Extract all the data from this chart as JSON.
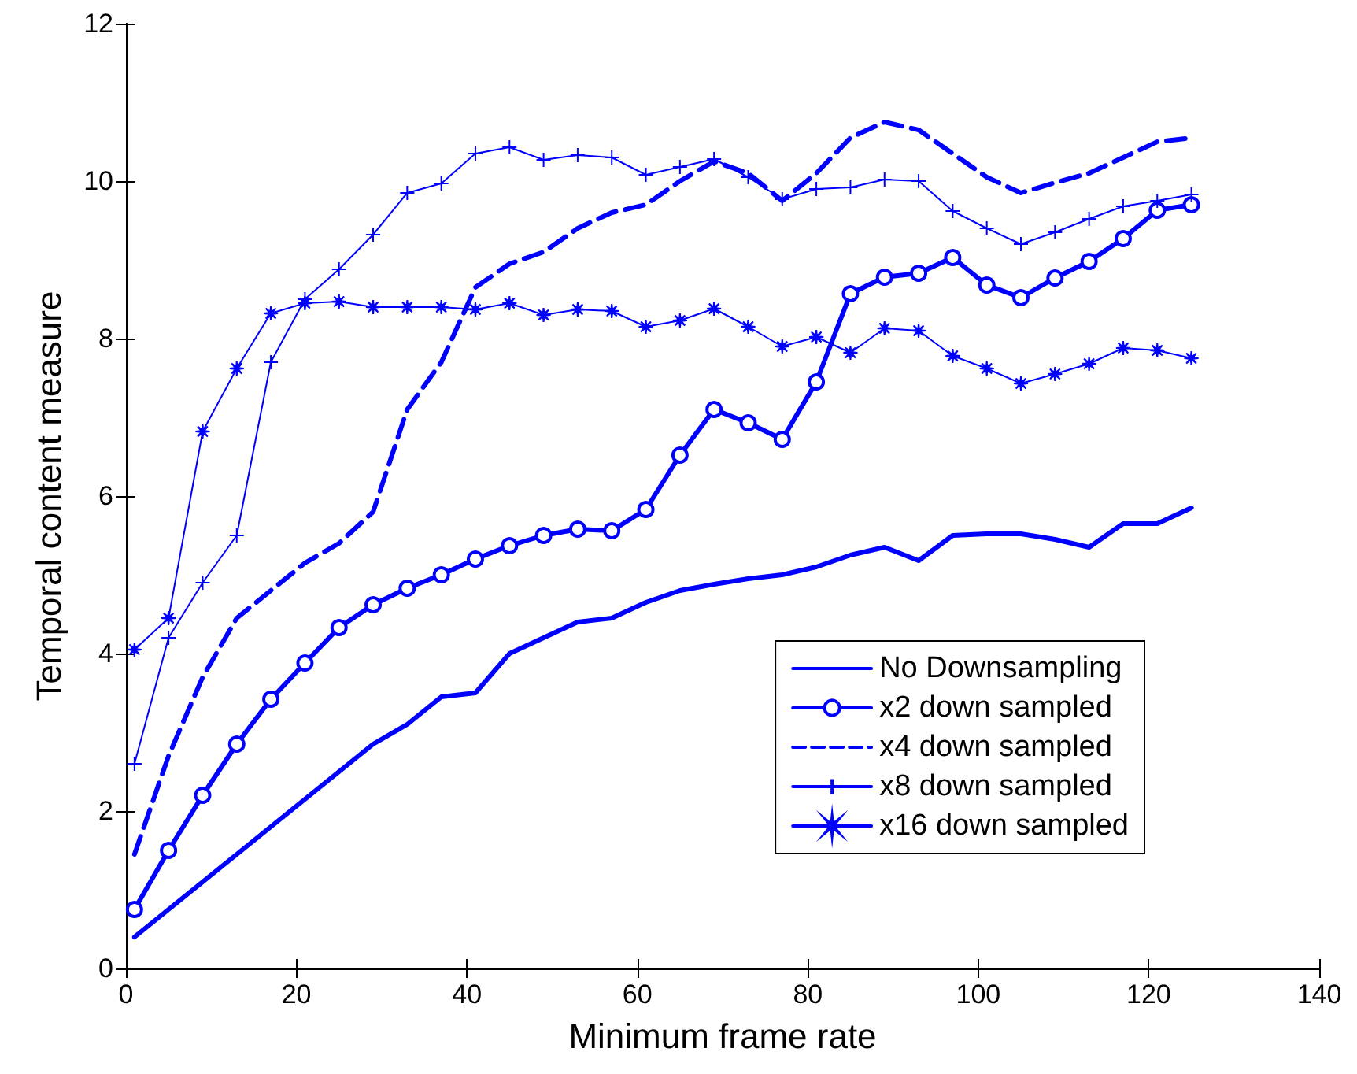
{
  "chart_data": {
    "type": "line",
    "xlabel": "Minimum frame rate",
    "ylabel": "Temporal content measure",
    "x": [
      1,
      5,
      9,
      13,
      17,
      21,
      25,
      29,
      33,
      37,
      41,
      45,
      49,
      53,
      57,
      61,
      65,
      69,
      73,
      77,
      81,
      85,
      89,
      93,
      97,
      101,
      105,
      109,
      113,
      117,
      121,
      125
    ],
    "series": [
      {
        "name": "No Downsampling",
        "color": "#0000ff",
        "marker": "none",
        "line_style": "solid",
        "values": [
          0.4,
          0.75,
          1.1,
          1.45,
          1.8,
          2.15,
          2.5,
          2.85,
          3.1,
          3.45,
          3.5,
          4.0,
          4.2,
          4.4,
          4.45,
          4.65,
          4.8,
          4.88,
          4.95,
          5.0,
          5.1,
          5.25,
          5.35,
          5.18,
          5.5,
          5.52,
          5.52,
          5.45,
          5.35,
          5.65,
          5.65,
          5.85
        ]
      },
      {
        "name": "x2 down sampled",
        "color": "#0000ff",
        "marker": "circle",
        "line_style": "solid",
        "values": [
          0.75,
          1.5,
          2.2,
          2.85,
          3.42,
          3.88,
          4.33,
          4.62,
          4.83,
          5.0,
          5.2,
          5.37,
          5.5,
          5.58,
          5.56,
          5.83,
          6.52,
          7.1,
          6.93,
          6.72,
          7.45,
          8.57,
          8.78,
          8.83,
          9.03,
          8.68,
          8.52,
          8.77,
          8.98,
          9.27,
          9.63,
          9.7
        ]
      },
      {
        "name": "x4 down sampled",
        "color": "#0000ff",
        "marker": "none",
        "line_style": "dashed",
        "values": [
          1.45,
          2.7,
          3.7,
          4.45,
          4.8,
          5.15,
          5.4,
          5.8,
          7.1,
          7.7,
          8.65,
          8.95,
          9.1,
          9.4,
          9.6,
          9.7,
          10.0,
          10.25,
          10.1,
          9.75,
          10.1,
          10.55,
          10.75,
          10.65,
          10.35,
          10.05,
          9.85,
          9.98,
          10.1,
          10.3,
          10.5,
          10.55
        ]
      },
      {
        "name": "x8 down sampled",
        "color": "#0000ff",
        "marker": "cross",
        "line_style": "solid",
        "values": [
          2.6,
          4.2,
          4.9,
          5.5,
          7.7,
          8.5,
          8.88,
          9.32,
          9.85,
          9.97,
          10.35,
          10.43,
          10.27,
          10.33,
          10.3,
          10.08,
          10.18,
          10.28,
          10.05,
          9.77,
          9.9,
          9.92,
          10.02,
          10.0,
          9.62,
          9.4,
          9.2,
          9.35,
          9.52,
          9.68,
          9.75,
          9.83
        ]
      },
      {
        "name": "x16 down sampled",
        "color": "#0000ff",
        "marker": "star",
        "line_style": "solid",
        "values": [
          4.05,
          4.45,
          6.82,
          7.62,
          8.32,
          8.45,
          8.47,
          8.4,
          8.4,
          8.4,
          8.37,
          8.45,
          8.3,
          8.37,
          8.35,
          8.15,
          8.23,
          8.38,
          8.15,
          7.9,
          8.02,
          7.82,
          8.13,
          8.1,
          7.78,
          7.62,
          7.43,
          7.55,
          7.68,
          7.88,
          7.85,
          7.75
        ]
      }
    ],
    "xlim": [
      0,
      140
    ],
    "xticks": [
      0,
      20,
      40,
      60,
      80,
      100,
      120,
      140
    ],
    "ylim": [
      0,
      12
    ],
    "yticks": [
      0,
      2,
      4,
      6,
      8,
      10,
      12
    ],
    "grid": false,
    "legend": "bottom right"
  }
}
